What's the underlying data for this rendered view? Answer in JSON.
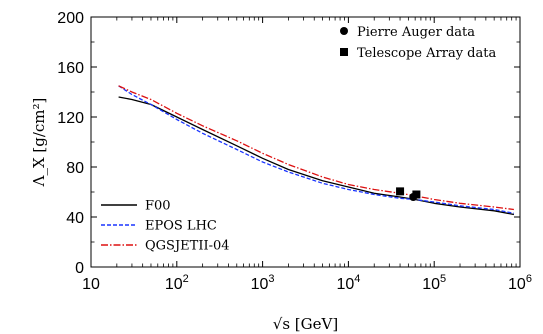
{
  "chart_data": {
    "type": "line",
    "xlabel": "√s [GeV]",
    "ylabel": "Λ_X [g/cm²]",
    "xscale": "log",
    "xlim": [
      10,
      1000000
    ],
    "ylim": [
      0,
      200
    ],
    "x_ticks": [
      10,
      100,
      1000,
      10000,
      100000,
      1000000
    ],
    "x_tick_labels": [
      {
        "base": "10",
        "exp": ""
      },
      {
        "base": "10",
        "exp": "2"
      },
      {
        "base": "10",
        "exp": "3"
      },
      {
        "base": "10",
        "exp": "4"
      },
      {
        "base": "10",
        "exp": "5"
      },
      {
        "base": "10",
        "exp": "6"
      }
    ],
    "y_ticks": [
      0,
      40,
      80,
      120,
      160,
      200
    ],
    "y_tick_labels": [
      "0",
      "40",
      "80",
      "120",
      "160",
      "200"
    ],
    "grid": false,
    "series": [
      {
        "name": "F00",
        "color": "#000000",
        "dash": "solid",
        "x": [
          21,
          30,
          50,
          100,
          200,
          500,
          1000,
          2000,
          5000,
          10000,
          20000,
          40000,
          60000,
          100000,
          200000,
          500000,
          850000
        ],
        "y": [
          136,
          134,
          130,
          120,
          110,
          97,
          87,
          78,
          69,
          64,
          59,
          56,
          54,
          51,
          48,
          45,
          42
        ]
      },
      {
        "name": "EPOS LHC",
        "color": "#1a35ff",
        "dash": "dashed",
        "x": [
          21,
          30,
          50,
          100,
          200,
          500,
          1000,
          2000,
          5000,
          10000,
          20000,
          40000,
          60000,
          100000,
          200000,
          500000,
          850000
        ],
        "y": [
          145,
          138,
          130,
          118,
          107,
          94,
          84,
          76,
          67,
          62,
          58,
          55,
          54,
          52,
          49,
          46,
          43
        ]
      },
      {
        "name": "QGSJETII-04",
        "color": "#dd1111",
        "dash": "dashdot",
        "x": [
          21,
          30,
          50,
          100,
          200,
          500,
          1000,
          2000,
          5000,
          10000,
          20000,
          40000,
          60000,
          100000,
          200000,
          500000,
          850000
        ],
        "y": [
          145,
          140,
          134,
          123,
          113,
          101,
          91,
          82,
          72,
          66,
          62,
          59,
          57,
          54,
          51,
          48,
          46
        ]
      },
      {
        "name": "Pierre Auger data",
        "type": "scatter",
        "marker": "circle",
        "color": "#000000",
        "x": [
          57000
        ],
        "y": [
          56
        ]
      },
      {
        "name": "Telescope Array data",
        "type": "scatter",
        "marker": "square",
        "color": "#000000",
        "x": [
          40000,
          62000
        ],
        "y": [
          60.5,
          58
        ]
      }
    ],
    "legend_top_right": [
      "Pierre Auger data",
      "Telescope Array data"
    ],
    "legend_bottom_left": [
      "F00",
      "EPOS LHC",
      "QGSJETII-04"
    ]
  }
}
